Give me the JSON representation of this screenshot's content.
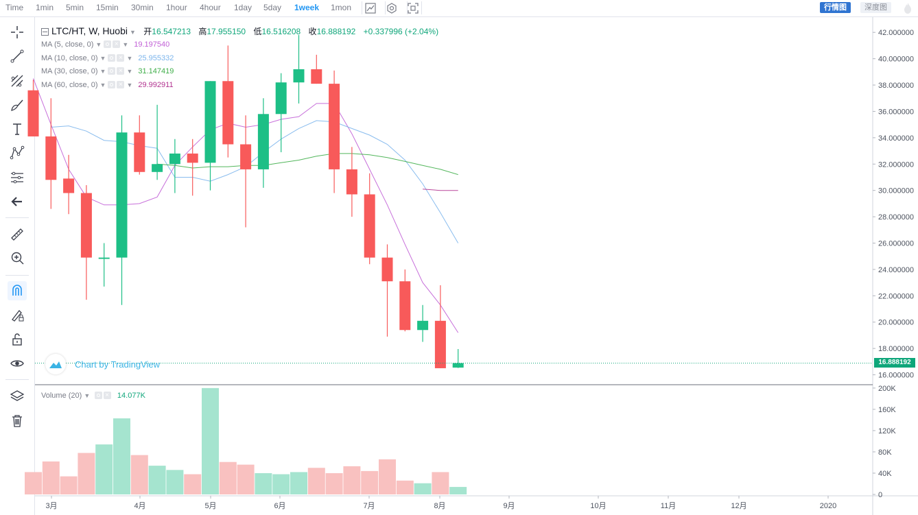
{
  "toolbar": {
    "timeframes": [
      {
        "label": "Time",
        "active": false
      },
      {
        "label": "1min",
        "active": false
      },
      {
        "label": "5min",
        "active": false
      },
      {
        "label": "15min",
        "active": false
      },
      {
        "label": "30min",
        "active": false
      },
      {
        "label": "1hour",
        "active": false
      },
      {
        "label": "4hour",
        "active": false
      },
      {
        "label": "1day",
        "active": false
      },
      {
        "label": "5day",
        "active": false
      },
      {
        "label": "1week",
        "active": true
      },
      {
        "label": "1mon",
        "active": false
      }
    ],
    "icons": [
      "bar-style-icon",
      "indicators-icon",
      "fullscreen-icon"
    ],
    "market_btn": "行情图",
    "depth_btn": "深度图"
  },
  "sidebar": {
    "tools": [
      "crosshair-icon",
      "trend-line-icon",
      "pitchfork-icon",
      "brush-icon",
      "text-icon",
      "pattern-icon",
      "measure-icon",
      "back-arrow-icon",
      "ruler-icon",
      "zoom-in-icon",
      "magnet-icon",
      "lock-drawing-icon",
      "unlock-icon",
      "eye-icon",
      "layers-icon",
      "trash-icon"
    ]
  },
  "legend": {
    "symbol": "LTC/HT, W, Huobi",
    "open_label": "开",
    "open": "16.547213",
    "high_label": "高",
    "high": "17.955150",
    "low_label": "低",
    "low": "16.516208",
    "close_label": "收",
    "close": "16.888192",
    "change": "+0.337996 (+2.04%)",
    "mas": [
      {
        "name": "MA (5, close, 0)",
        "value": "19.197540",
        "color": "#c15fd6"
      },
      {
        "name": "MA (10, close, 0)",
        "value": "25.955332",
        "color": "#7cb5ec"
      },
      {
        "name": "MA (30, close, 0)",
        "value": "31.147419",
        "color": "#3fae49"
      },
      {
        "name": "MA (60, close, 0)",
        "value": "29.992911",
        "color": "#b1328f"
      }
    ]
  },
  "volume_legend": {
    "name": "Volume (20)",
    "value": "14.077K"
  },
  "watermark": "Chart by TradingView",
  "price_label": "16.888192",
  "colors": {
    "up": "#26a69a",
    "upBody": "#1dbf86",
    "down": "#ef5350",
    "downBody": "#f85a5a",
    "volUp": "#a5e4cf",
    "volDown": "#f9c1c0",
    "accent": "#2196f3"
  },
  "chart_data": {
    "type": "candlestick",
    "price_axis": {
      "ylim": [
        15.3,
        43.0
      ],
      "ticks": [
        "16.000000",
        "18.000000",
        "20.000000",
        "22.000000",
        "24.000000",
        "26.000000",
        "28.000000",
        "30.000000",
        "32.000000",
        "34.000000",
        "36.000000",
        "38.000000",
        "40.000000",
        "42.000000"
      ]
    },
    "volume_axis": {
      "ylim": [
        0,
        205
      ],
      "ticks": [
        "0",
        "40K",
        "80K",
        "120K",
        "160K",
        "200K"
      ]
    },
    "x_ticks": [
      "3月",
      "4月",
      "5月",
      "6月",
      "7月",
      "8月",
      "9月",
      "10月",
      "11月",
      "12月",
      "2020"
    ],
    "series": [
      {
        "name": "LTC/HT",
        "candles": [
          {
            "o": 37.6,
            "h": 38.4,
            "l": 34.1,
            "c": 34.1,
            "v": 42
          },
          {
            "o": 34.1,
            "h": 37.0,
            "l": 28.6,
            "c": 30.8,
            "v": 62
          },
          {
            "o": 30.9,
            "h": 32.7,
            "l": 28.2,
            "c": 29.8,
            "v": 34
          },
          {
            "o": 29.8,
            "h": 30.4,
            "l": 21.7,
            "c": 24.9,
            "v": 78
          },
          {
            "o": 24.8,
            "h": 26.0,
            "l": 22.7,
            "c": 24.9,
            "v": 94
          },
          {
            "o": 24.9,
            "h": 35.7,
            "l": 21.3,
            "c": 34.4,
            "v": 143
          },
          {
            "o": 34.4,
            "h": 35.7,
            "l": 31.2,
            "c": 31.4,
            "v": 74
          },
          {
            "o": 31.4,
            "h": 36.5,
            "l": 30.8,
            "c": 32.0,
            "v": 54
          },
          {
            "o": 32.0,
            "h": 33.9,
            "l": 29.8,
            "c": 32.8,
            "v": 46
          },
          {
            "o": 32.8,
            "h": 33.9,
            "l": 29.6,
            "c": 32.1,
            "v": 38
          },
          {
            "o": 32.1,
            "h": 38.3,
            "l": 30.0,
            "c": 38.3,
            "v": 200
          },
          {
            "o": 38.3,
            "h": 41.0,
            "l": 32.5,
            "c": 33.5,
            "v": 61
          },
          {
            "o": 33.5,
            "h": 35.7,
            "l": 27.2,
            "c": 31.6,
            "v": 56
          },
          {
            "o": 31.6,
            "h": 37.0,
            "l": 30.2,
            "c": 35.8,
            "v": 40
          },
          {
            "o": 35.8,
            "h": 38.9,
            "l": 32.9,
            "c": 38.2,
            "v": 38
          },
          {
            "o": 38.2,
            "h": 41.8,
            "l": 36.6,
            "c": 39.2,
            "v": 42
          },
          {
            "o": 39.2,
            "h": 40.3,
            "l": 38.1,
            "c": 38.1,
            "v": 50
          },
          {
            "o": 38.1,
            "h": 39.1,
            "l": 29.8,
            "c": 31.6,
            "v": 40
          },
          {
            "o": 31.6,
            "h": 33.3,
            "l": 28.0,
            "c": 29.7,
            "v": 53
          },
          {
            "o": 29.7,
            "h": 31.3,
            "l": 24.4,
            "c": 24.9,
            "v": 44
          },
          {
            "o": 24.9,
            "h": 25.9,
            "l": 18.9,
            "c": 23.1,
            "v": 66
          },
          {
            "o": 23.1,
            "h": 24.0,
            "l": 19.3,
            "c": 19.4,
            "v": 26
          },
          {
            "o": 19.4,
            "h": 21.3,
            "l": 18.5,
            "c": 20.1,
            "v": 21
          },
          {
            "o": 20.1,
            "h": 22.8,
            "l": 16.5,
            "c": 16.5,
            "v": 42
          },
          {
            "o": 16.547213,
            "h": 17.95515,
            "l": 16.516208,
            "c": 16.888192,
            "v": 14.077
          }
        ]
      },
      {
        "name": "MA (5, close, 0)",
        "values": [
          38.5,
          35.0,
          31.6,
          29.5,
          28.9,
          28.9,
          29.0,
          29.5,
          31.9,
          33.3,
          34.6,
          35.1,
          34.8,
          35.0,
          35.4,
          35.6,
          36.6,
          36.6,
          34.3,
          31.6,
          28.9,
          25.9,
          23.0,
          21.3,
          19.2
        ]
      },
      {
        "name": "MA (10, close, 0)",
        "values": [
          34.8,
          34.9,
          34.5,
          33.8,
          33.7,
          33.4,
          33.2,
          31.0,
          31.0,
          30.7,
          31.2,
          31.8,
          32.9,
          33.9,
          34.7,
          35.3,
          35.2,
          34.7,
          34.2,
          33.5,
          32.3,
          30.5,
          28.3,
          26.0
        ]
      },
      {
        "name": "MA (30, close, 0)",
        "values": [
          32.0,
          31.9,
          31.7,
          31.8,
          31.8,
          31.9,
          31.9,
          32.1,
          32.3,
          32.6,
          32.8,
          32.8,
          32.7,
          32.5,
          32.2,
          31.9,
          31.6,
          31.2
        ]
      },
      {
        "name": "MA (60, close, 0)",
        "values": [
          30.1,
          30.0,
          30.0
        ]
      }
    ]
  }
}
